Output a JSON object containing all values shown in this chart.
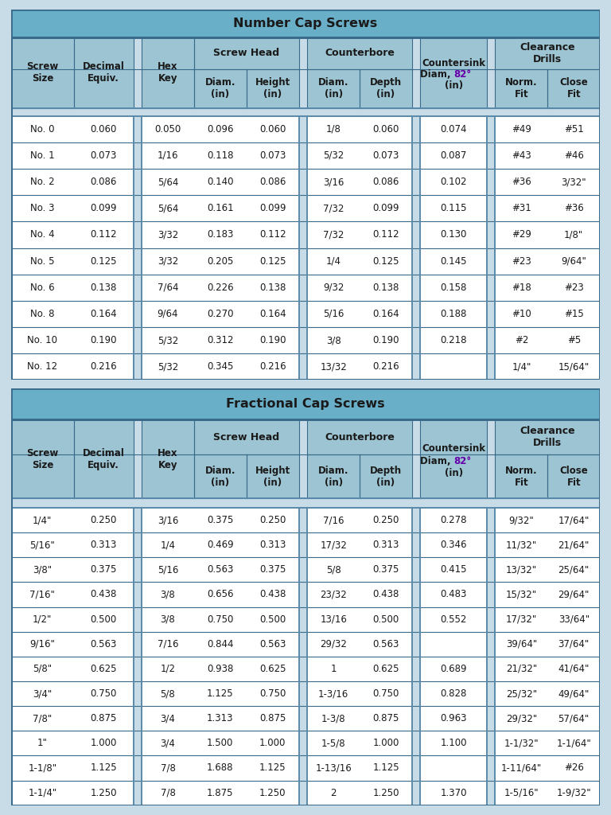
{
  "table1_title": "Number Cap Screws",
  "table2_title": "Fractional Cap Screws",
  "hdr_color": "#9dc4d2",
  "title_color": "#6aafc8",
  "sep_color": "#5a8aaa",
  "border_color": "#3a6a8a",
  "data_bg": "#ffffff",
  "text_color": "#1a1a1a",
  "purple_color": "#6600aa",
  "light_sep_bg": "#c8dce8",
  "table1_data": [
    [
      "No. 0",
      "0.060",
      "0.050",
      "0.096",
      "0.060",
      "1/8",
      "0.060",
      "0.074",
      "#49",
      "#51"
    ],
    [
      "No. 1",
      "0.073",
      "1/16",
      "0.118",
      "0.073",
      "5/32",
      "0.073",
      "0.087",
      "#43",
      "#46"
    ],
    [
      "No. 2",
      "0.086",
      "5/64",
      "0.140",
      "0.086",
      "3/16",
      "0.086",
      "0.102",
      "#36",
      "3/32\""
    ],
    [
      "No. 3",
      "0.099",
      "5/64",
      "0.161",
      "0.099",
      "7/32",
      "0.099",
      "0.115",
      "#31",
      "#36"
    ],
    [
      "No. 4",
      "0.112",
      "3/32",
      "0.183",
      "0.112",
      "7/32",
      "0.112",
      "0.130",
      "#29",
      "1/8\""
    ],
    [
      "No. 5",
      "0.125",
      "3/32",
      "0.205",
      "0.125",
      "1/4",
      "0.125",
      "0.145",
      "#23",
      "9/64\""
    ],
    [
      "No. 6",
      "0.138",
      "7/64",
      "0.226",
      "0.138",
      "9/32",
      "0.138",
      "0.158",
      "#18",
      "#23"
    ],
    [
      "No. 8",
      "0.164",
      "9/64",
      "0.270",
      "0.164",
      "5/16",
      "0.164",
      "0.188",
      "#10",
      "#15"
    ],
    [
      "No. 10",
      "0.190",
      "5/32",
      "0.312",
      "0.190",
      "3/8",
      "0.190",
      "0.218",
      "#2",
      "#5"
    ],
    [
      "No. 12",
      "0.216",
      "5/32",
      "0.345",
      "0.216",
      "13/32",
      "0.216",
      "",
      "1/4\"",
      "15/64\""
    ]
  ],
  "table2_data": [
    [
      "1/4\"",
      "0.250",
      "3/16",
      "0.375",
      "0.250",
      "7/16",
      "0.250",
      "0.278",
      "9/32\"",
      "17/64\""
    ],
    [
      "5/16\"",
      "0.313",
      "1/4",
      "0.469",
      "0.313",
      "17/32",
      "0.313",
      "0.346",
      "11/32\"",
      "21/64\""
    ],
    [
      "3/8\"",
      "0.375",
      "5/16",
      "0.563",
      "0.375",
      "5/8",
      "0.375",
      "0.415",
      "13/32\"",
      "25/64\""
    ],
    [
      "7/16\"",
      "0.438",
      "3/8",
      "0.656",
      "0.438",
      "23/32",
      "0.438",
      "0.483",
      "15/32\"",
      "29/64\""
    ],
    [
      "1/2\"",
      "0.500",
      "3/8",
      "0.750",
      "0.500",
      "13/16",
      "0.500",
      "0.552",
      "17/32\"",
      "33/64\""
    ],
    [
      "9/16\"",
      "0.563",
      "7/16",
      "0.844",
      "0.563",
      "29/32",
      "0.563",
      "",
      "39/64\"",
      "37/64\""
    ],
    [
      "5/8\"",
      "0.625",
      "1/2",
      "0.938",
      "0.625",
      "1",
      "0.625",
      "0.689",
      "21/32\"",
      "41/64\""
    ],
    [
      "3/4\"",
      "0.750",
      "5/8",
      "1.125",
      "0.750",
      "1-3/16",
      "0.750",
      "0.828",
      "25/32\"",
      "49/64\""
    ],
    [
      "7/8\"",
      "0.875",
      "3/4",
      "1.313",
      "0.875",
      "1-3/8",
      "0.875",
      "0.963",
      "29/32\"",
      "57/64\""
    ],
    [
      "1\"",
      "1.000",
      "3/4",
      "1.500",
      "1.000",
      "1-5/8",
      "1.000",
      "1.100",
      "1-1/32\"",
      "1-1/64\""
    ],
    [
      "1-1/8\"",
      "1.125",
      "7/8",
      "1.688",
      "1.125",
      "1-13/16",
      "1.125",
      "",
      "1-11/64\"",
      "#26"
    ],
    [
      "1-1/4\"",
      "1.250",
      "7/8",
      "1.875",
      "1.250",
      "2",
      "1.250",
      "1.370",
      "1-5/16\"",
      "1-9/32\""
    ]
  ]
}
